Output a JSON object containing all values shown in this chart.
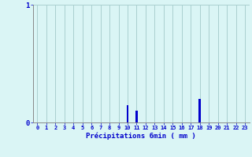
{
  "xlabel": "Précipitations 6min ( mm )",
  "hours": [
    0,
    1,
    2,
    3,
    4,
    5,
    6,
    7,
    8,
    9,
    10,
    11,
    12,
    13,
    14,
    15,
    16,
    17,
    18,
    19,
    20,
    21,
    22,
    23
  ],
  "values": [
    0,
    0,
    0,
    0,
    0,
    0,
    0,
    0,
    0,
    0,
    0.15,
    0.1,
    0,
    0,
    0,
    0,
    0,
    0,
    0.2,
    0,
    0,
    0,
    0,
    0
  ],
  "bar_color": "#0000cc",
  "background_color": "#daf5f5",
  "grid_color": "#aacfcf",
  "axis_color": "#888888",
  "text_color": "#0000cc",
  "ylim": [
    0,
    1
  ],
  "xlim": [
    -0.5,
    23.5
  ]
}
